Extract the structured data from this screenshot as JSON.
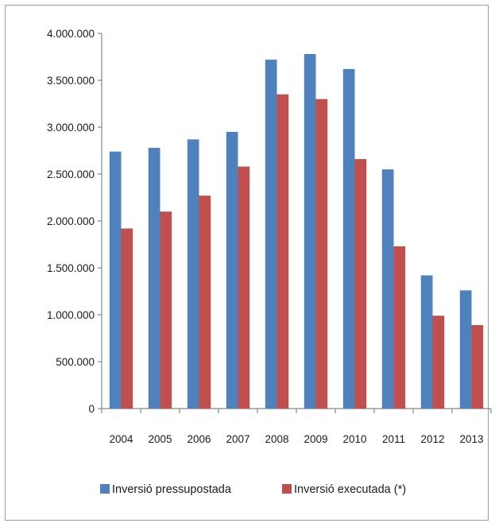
{
  "chart_data": {
    "type": "bar",
    "categories": [
      "2004",
      "2005",
      "2006",
      "2007",
      "2008",
      "2009",
      "2010",
      "2011",
      "2012",
      "2013"
    ],
    "series": [
      {
        "name": "Inversió pressupostada",
        "color": "#4f81bd",
        "values": [
          2740000,
          2780000,
          2870000,
          2950000,
          3720000,
          3780000,
          3620000,
          2550000,
          1420000,
          1260000
        ]
      },
      {
        "name": "Inversió executada (*)",
        "color": "#c0504d",
        "values": [
          1920000,
          2100000,
          2270000,
          2580000,
          3350000,
          3300000,
          2660000,
          1730000,
          990000,
          890000
        ]
      }
    ],
    "title": "",
    "xlabel": "",
    "ylabel": "",
    "ylim": [
      0,
      4000000
    ],
    "y_ticks": [
      "0",
      "500.000",
      "1.000.000",
      "1.500.000",
      "2.000.000",
      "2.500.000",
      "3.000.000",
      "3.500.000",
      "4.000.000"
    ],
    "grid": false,
    "legend_position": "bottom"
  }
}
